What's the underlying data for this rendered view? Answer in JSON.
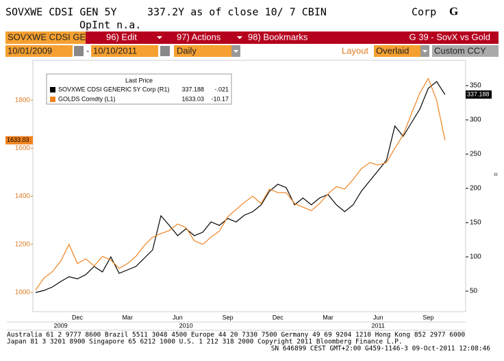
{
  "header": {
    "ticker": "SOVXWE CDSI GEN 5Y",
    "quote": "337.2Y as of close 10/ 7 CBIN",
    "sector": "Corp",
    "key": "G",
    "open_interest": "OpInt n.a."
  },
  "toolbar": {
    "security": "SOVXWE CDSI GE",
    "menus": [
      "96) Edit",
      "97) Actions",
      "98) Bookmarks"
    ],
    "page": "G 39 - SovX vs Gold",
    "start_date": "10/01/2009",
    "date_separator": "-",
    "end_date": "10/10/2011",
    "period": "Daily",
    "layout_label": "Layout",
    "layout": "Overlaid",
    "currency": "Custom CCY",
    "collapse": "«"
  },
  "chart_data": {
    "type": "line",
    "legend_title": "Last Price",
    "categories": [
      null,
      null,
      null,
      null,
      null,
      "Dec",
      null,
      null,
      null,
      null,
      null,
      "Mar",
      null,
      null,
      null,
      null,
      null,
      "Jun",
      null,
      null,
      null,
      null,
      null,
      "Sep",
      null,
      null,
      null,
      null,
      null,
      "Dec",
      null,
      null,
      null,
      null,
      null,
      "Mar",
      null,
      null,
      null,
      null,
      null,
      "Jun",
      null,
      null,
      null,
      null,
      null,
      "Sep",
      null,
      null
    ],
    "years": [
      null,
      null,
      null,
      "2009",
      null,
      null,
      null,
      null,
      null,
      null,
      null,
      null,
      null,
      null,
      null,
      null,
      null,
      null,
      "2010",
      null,
      null,
      null,
      null,
      null,
      null,
      null,
      null,
      null,
      null,
      null,
      null,
      null,
      null,
      null,
      null,
      null,
      null,
      null,
      null,
      null,
      null,
      "2011",
      null,
      null,
      null,
      null,
      null,
      null,
      null,
      null
    ],
    "series": [
      {
        "name": "SOVXWE CDSI GENERIC 5Y Corp  (R1)",
        "color": "#000000",
        "axis": "y2",
        "last_value": "337.188",
        "change": "-.021",
        "values": [
          48,
          51,
          56,
          64,
          71,
          68,
          74,
          86,
          78,
          100,
          76,
          81,
          86,
          98,
          110,
          160,
          146,
          131,
          141,
          131,
          136,
          151,
          146,
          156,
          151,
          161,
          166,
          176,
          196,
          206,
          201,
          176,
          186,
          176,
          186,
          191,
          176,
          166,
          176,
          196,
          211,
          226,
          241,
          291,
          276,
          296,
          316,
          346,
          356,
          337
        ]
      },
      {
        "name": "GOLDS Comdty  (L1)",
        "color": "#f0821e",
        "axis": "y",
        "last_value": "1633.03",
        "change": "-10.17",
        "values": [
          1010,
          1060,
          1086,
          1130,
          1200,
          1120,
          1140,
          1110,
          1150,
          1135,
          1100,
          1120,
          1150,
          1195,
          1230,
          1245,
          1257,
          1285,
          1270,
          1215,
          1200,
          1230,
          1255,
          1315,
          1345,
          1375,
          1400,
          1370,
          1430,
          1415,
          1415,
          1370,
          1355,
          1340,
          1370,
          1410,
          1440,
          1430,
          1470,
          1515,
          1540,
          1530,
          1540,
          1600,
          1655,
          1745,
          1830,
          1890,
          1800,
          1633
        ]
      }
    ],
    "ylim": [
      920,
      1960
    ],
    "yticks": [
      1000,
      1200,
      1400,
      1600,
      1800
    ],
    "y_axis_color": "#e07b20",
    "y2lim": [
      20,
      385
    ],
    "y2ticks": [
      50,
      100,
      150,
      200,
      250,
      300,
      350
    ]
  },
  "footer": [
    "Australia 61 2 9777 8600 Brazil 5511 3048 4500 Europe 44 20 7330 7500 Germany 49 69 9204 1210 Hong Kong 852 2977 6000",
    "Japan 81 3 3201 8900         Singapore 65 6212 1000         U.S. 1 212 318 2000          Copyright 2011 Bloomberg Finance L.P.",
    "SN 646899 CEST GMT+2:00 G459-1146-3 09-Oct-2011 12:08:46"
  ]
}
